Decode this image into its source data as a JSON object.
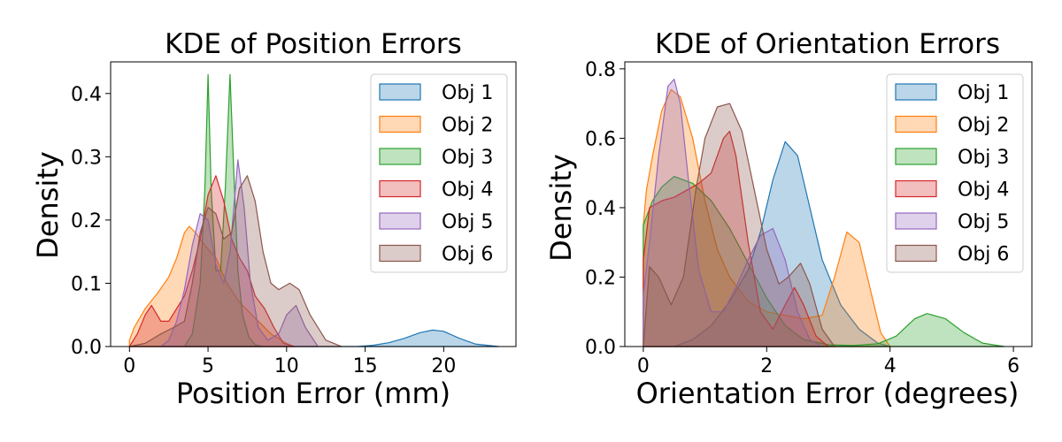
{
  "chart_data": [
    {
      "type": "area",
      "title": "KDE of Position Errors",
      "xlabel": "Position Error (mm)",
      "ylabel": "Density",
      "xlim": [
        -1.2,
        24.6
      ],
      "ylim": [
        0,
        0.45
      ],
      "xticks": [
        0,
        5,
        10,
        15,
        20
      ],
      "yticks": [
        0.0,
        0.1,
        0.2,
        0.3,
        0.4
      ],
      "grid": false,
      "legend_position": "top-right",
      "series": [
        {
          "name": "Obj 1",
          "color": "#1f77b4",
          "x": [
            0,
            14.5,
            15.5,
            16.5,
            17.5,
            18.5,
            19.3,
            20,
            21,
            22,
            23.5
          ],
          "y": [
            0,
            0,
            0.002,
            0.006,
            0.013,
            0.022,
            0.026,
            0.024,
            0.013,
            0.004,
            0
          ]
        },
        {
          "name": "Obj 2",
          "color": "#ff7f0e",
          "x": [
            0,
            0.3,
            1,
            1.8,
            2.5,
            3,
            3.5,
            3.8,
            4.2,
            4.8,
            5.5,
            6.2,
            7,
            8,
            9,
            10,
            10.5
          ],
          "y": [
            0.01,
            0.03,
            0.06,
            0.085,
            0.11,
            0.14,
            0.18,
            0.19,
            0.18,
            0.16,
            0.14,
            0.1,
            0.07,
            0.045,
            0.02,
            0.005,
            0
          ]
        },
        {
          "name": "Obj 3",
          "color": "#2ca02c",
          "x": [
            3.5,
            4,
            4.5,
            4.8,
            5.0,
            5.2,
            5.5,
            5.8,
            6.1,
            6.4,
            6.6,
            6.9,
            7.2,
            7.6,
            8,
            8.5
          ],
          "y": [
            0,
            0.02,
            0.1,
            0.25,
            0.43,
            0.25,
            0.12,
            0.12,
            0.25,
            0.43,
            0.3,
            0.12,
            0.05,
            0.015,
            0.003,
            0
          ]
        },
        {
          "name": "Obj 4",
          "color": "#d62728",
          "x": [
            0,
            0.5,
            1,
            1.4,
            2,
            2.5,
            3,
            3.5,
            4,
            4.5,
            5,
            5.5,
            6,
            6.5,
            7,
            7.5,
            8,
            8.6,
            9.2,
            9.8,
            10.5
          ],
          "y": [
            0,
            0.02,
            0.05,
            0.065,
            0.04,
            0.04,
            0.06,
            0.08,
            0.12,
            0.17,
            0.24,
            0.27,
            0.23,
            0.17,
            0.14,
            0.12,
            0.08,
            0.06,
            0.03,
            0.005,
            0
          ]
        },
        {
          "name": "Obj 5",
          "color": "#9467bd",
          "x": [
            2,
            2.5,
            3,
            3.5,
            4,
            4.5,
            5,
            5.5,
            6,
            6.4,
            6.9,
            7.3,
            7.7,
            8.2,
            8.8,
            9.5,
            10,
            10.6,
            11.2,
            12
          ],
          "y": [
            0,
            0.01,
            0.04,
            0.09,
            0.16,
            0.21,
            0.2,
            0.13,
            0.1,
            0.15,
            0.295,
            0.22,
            0.1,
            0.03,
            0.01,
            0.02,
            0.05,
            0.065,
            0.03,
            0
          ]
        },
        {
          "name": "Obj 6",
          "color": "#8c564b",
          "x": [
            0,
            1,
            2,
            2.8,
            3.5,
            4,
            4.5,
            5,
            5.5,
            6,
            6.5,
            7,
            7.5,
            8,
            8.5,
            9,
            9.5,
            10.2,
            10.8,
            11.5,
            12.5,
            13.5
          ],
          "y": [
            0,
            0.005,
            0.02,
            0.03,
            0.04,
            0.1,
            0.18,
            0.22,
            0.21,
            0.17,
            0.18,
            0.25,
            0.27,
            0.23,
            0.15,
            0.1,
            0.09,
            0.1,
            0.09,
            0.05,
            0.01,
            0
          ]
        }
      ]
    },
    {
      "type": "area",
      "title": "KDE of Orientation Errors",
      "xlabel": "Orientation Error (degrees)",
      "ylabel": "Density",
      "xlim": [
        -0.3,
        6.3
      ],
      "ylim": [
        0,
        0.82
      ],
      "xticks": [
        0,
        2,
        4,
        6
      ],
      "yticks": [
        0.0,
        0.2,
        0.4,
        0.6,
        0.8
      ],
      "grid": false,
      "legend_position": "top-right",
      "series": [
        {
          "name": "Obj 1",
          "color": "#1f77b4",
          "x": [
            0.5,
            0.8,
            1.1,
            1.4,
            1.7,
            1.9,
            2.1,
            2.3,
            2.5,
            2.7,
            2.9,
            3.2,
            3.5,
            3.8,
            4.0
          ],
          "y": [
            0,
            0.02,
            0.06,
            0.13,
            0.22,
            0.33,
            0.48,
            0.59,
            0.55,
            0.4,
            0.25,
            0.12,
            0.05,
            0.01,
            0
          ]
        },
        {
          "name": "Obj 2",
          "color": "#ff7f0e",
          "x": [
            0,
            0.05,
            0.15,
            0.3,
            0.45,
            0.6,
            0.8,
            1.0,
            1.2,
            1.4,
            1.7,
            2.0,
            2.3,
            2.6,
            2.9,
            3.1,
            3.3,
            3.5,
            3.7,
            3.85,
            4.0
          ],
          "y": [
            0.35,
            0.45,
            0.55,
            0.68,
            0.74,
            0.72,
            0.6,
            0.42,
            0.28,
            0.2,
            0.13,
            0.1,
            0.09,
            0.08,
            0.09,
            0.2,
            0.33,
            0.3,
            0.15,
            0.04,
            0
          ]
        },
        {
          "name": "Obj 3",
          "color": "#2ca02c",
          "x": [
            0,
            0.15,
            0.3,
            0.5,
            0.8,
            1.1,
            1.4,
            1.7,
            2.0,
            2.3,
            2.6,
            3.0,
            3.4,
            3.8,
            4.1,
            4.4,
            4.6,
            4.9,
            5.2,
            5.5,
            5.85
          ],
          "y": [
            0.35,
            0.42,
            0.46,
            0.49,
            0.47,
            0.42,
            0.34,
            0.24,
            0.14,
            0.06,
            0.02,
            0.005,
            0.003,
            0.008,
            0.03,
            0.08,
            0.095,
            0.08,
            0.04,
            0.01,
            0
          ]
        },
        {
          "name": "Obj 4",
          "color": "#d62728",
          "x": [
            0,
            0.1,
            0.3,
            0.5,
            0.7,
            0.9,
            1.1,
            1.3,
            1.4,
            1.5,
            1.7,
            1.9,
            2.1,
            2.3,
            2.45,
            2.6,
            2.8,
            3.0
          ],
          "y": [
            0.25,
            0.4,
            0.42,
            0.43,
            0.45,
            0.47,
            0.5,
            0.6,
            0.62,
            0.55,
            0.3,
            0.1,
            0.05,
            0.12,
            0.17,
            0.12,
            0.03,
            0
          ]
        },
        {
          "name": "Obj 5",
          "color": "#9467bd",
          "x": [
            0,
            0.1,
            0.25,
            0.4,
            0.5,
            0.6,
            0.75,
            0.9,
            1.1,
            1.3,
            1.5,
            1.7,
            1.9,
            2.1,
            2.3,
            2.5,
            2.7,
            2.9
          ],
          "y": [
            0.15,
            0.3,
            0.55,
            0.75,
            0.77,
            0.7,
            0.45,
            0.22,
            0.1,
            0.1,
            0.17,
            0.25,
            0.32,
            0.34,
            0.25,
            0.1,
            0.02,
            0
          ]
        },
        {
          "name": "Obj 6",
          "color": "#8c564b",
          "x": [
            0,
            0.1,
            0.25,
            0.45,
            0.65,
            0.85,
            1.0,
            1.2,
            1.4,
            1.6,
            1.8,
            2.0,
            2.2,
            2.35,
            2.55,
            2.7,
            2.9,
            3.1
          ],
          "y": [
            0,
            0.23,
            0.2,
            0.12,
            0.2,
            0.45,
            0.6,
            0.69,
            0.7,
            0.62,
            0.45,
            0.28,
            0.18,
            0.2,
            0.24,
            0.18,
            0.05,
            0
          ]
        }
      ]
    }
  ]
}
